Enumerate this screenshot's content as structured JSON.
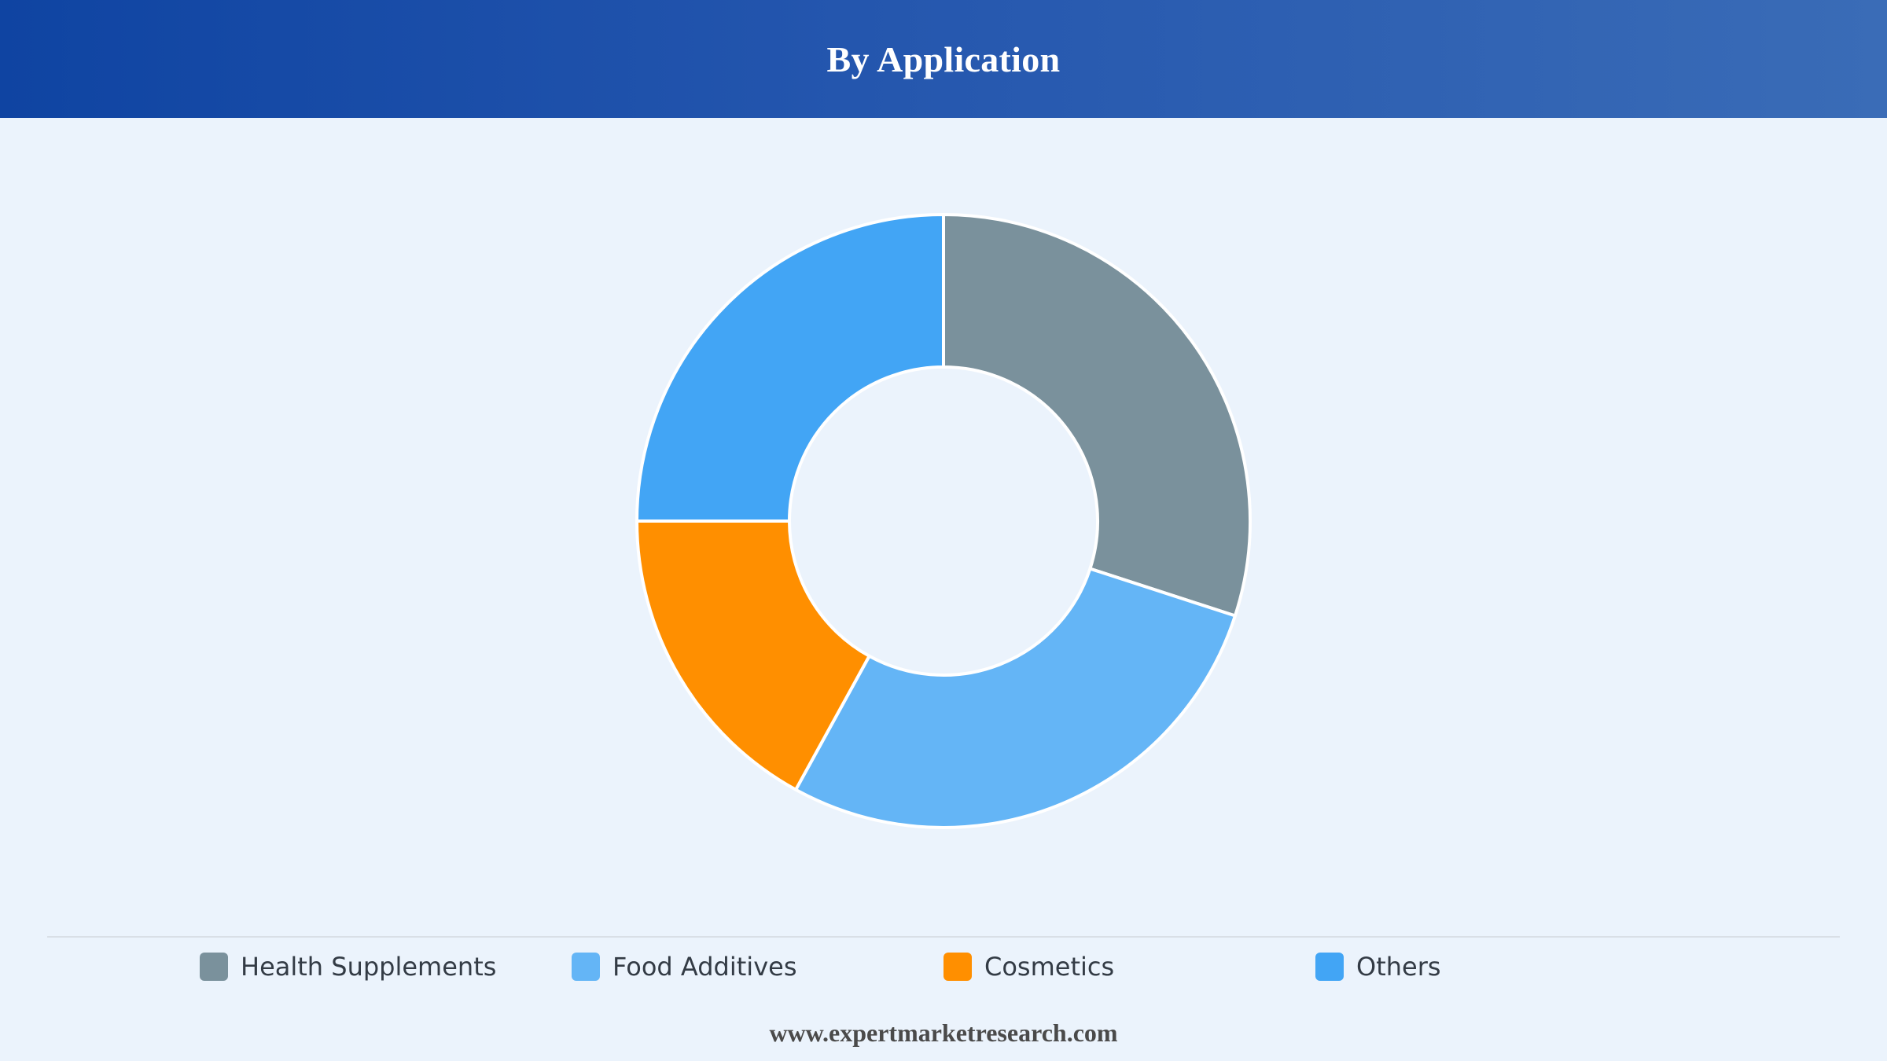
{
  "header": {
    "title": "By Application"
  },
  "chart_data": {
    "type": "pie",
    "variant": "donut",
    "title": "By Application",
    "categories": [
      "Health Supplements",
      "Food Additives",
      "Cosmetics",
      "Others"
    ],
    "values": [
      30,
      28,
      17,
      25
    ],
    "colors": [
      "#7a919c",
      "#64b5f6",
      "#ff8f00",
      "#42a5f5"
    ],
    "start_angle_deg": 0,
    "direction": "clockwise",
    "legend_position": "bottom"
  },
  "legend": {
    "items": [
      {
        "label": "Health Supplements",
        "color": "#7a919c"
      },
      {
        "label": "Food Additives",
        "color": "#64b5f6"
      },
      {
        "label": "Cosmetics",
        "color": "#ff8f00"
      },
      {
        "label": "Others",
        "color": "#42a5f5"
      }
    ]
  },
  "footer": {
    "source": "www.expertmarketresearch.com"
  }
}
